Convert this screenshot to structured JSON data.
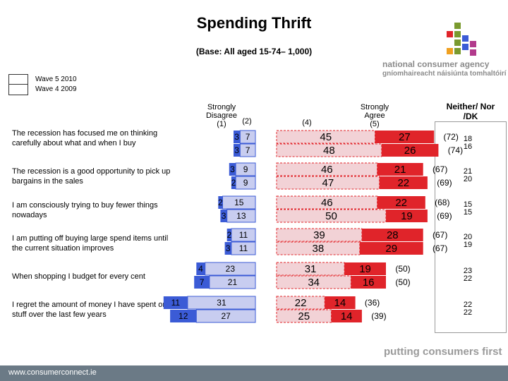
{
  "header": {
    "title": "Spending Thrift",
    "subtitle": "(Base: All aged 15-74– 1,000)"
  },
  "logo": {
    "name": "national consumer agency",
    "irish": "gníomhaireacht náisiúnta tomhaltóirí"
  },
  "legend": {
    "wave5": "Wave 5 2010",
    "wave4": "Wave 4 2009"
  },
  "columns": {
    "strongly_disagree": "Strongly Disagree",
    "sd_code": "(1)",
    "d_code": "(2)",
    "n_code": "(4)",
    "strongly_agree": "Strongly Agree",
    "sa_code": "(5)",
    "neither": "Neither/ Nor /DK"
  },
  "colors": {
    "strongly_disagree": "#3b5bd6",
    "disagree": "#c8cdf0",
    "neutral": "#f2d2d6",
    "agree": "#e0242a",
    "strongly_agree": "#e0242a",
    "footer": "#6b7a86"
  },
  "chart_data": {
    "type": "bar",
    "orientation": "horizontal-stacked-diverging",
    "title": "Spending Thrift",
    "subtitle": "(Base: All aged 15-74– 1,000)",
    "series_labels": [
      "Wave 5 2010",
      "Wave 4 2009"
    ],
    "categories": [
      "The recession has focused me on thinking carefully about what and when I buy",
      "The recession is a good opportunity to pick up bargains in the sales",
      "I am consciously trying to buy fewer things nowadays",
      "I am putting off buying large spend items until the current situation improves",
      "When shopping I budget for every cent",
      "I regret the amount of money I have spent on stuff over the last few years"
    ],
    "rows": [
      {
        "w5": {
          "sd": 3,
          "d": 7,
          "n": 45,
          "sa": 27,
          "total": "(72)",
          "neither": "18"
        },
        "w4": {
          "sd": 3,
          "d": 7,
          "n": 48,
          "sa": 26,
          "total": "(74)",
          "neither": "16"
        }
      },
      {
        "w5": {
          "sd": 3,
          "d": 9,
          "n": 46,
          "sa": 21,
          "total": "(67)",
          "neither": "21"
        },
        "w4": {
          "sd": 2,
          "d": 9,
          "n": 47,
          "sa": 22,
          "total": "(69)",
          "neither": "20"
        }
      },
      {
        "w5": {
          "sd": 2,
          "d": 15,
          "n": 46,
          "sa": 22,
          "total": "(68)",
          "neither": "15"
        },
        "w4": {
          "sd": 3,
          "d": 13,
          "n": 50,
          "sa": 19,
          "total": "(69)",
          "neither": "15"
        }
      },
      {
        "w5": {
          "sd": 2,
          "d": 11,
          "n": 39,
          "sa": 28,
          "total": "(67)",
          "neither": "20"
        },
        "w4": {
          "sd": 3,
          "d": 11,
          "n": 38,
          "sa": 29,
          "total": "(67)",
          "neither": "19"
        }
      },
      {
        "w5": {
          "sd": 4,
          "d": 23,
          "n": 31,
          "sa": 19,
          "total": "(50)",
          "neither": "23"
        },
        "w4": {
          "sd": 7,
          "d": 21,
          "n": 34,
          "sa": 16,
          "total": "(50)",
          "neither": "22"
        }
      },
      {
        "w5": {
          "sd": 11,
          "d": 31,
          "n": 22,
          "sa": 14,
          "total": "(36)",
          "neither": "22"
        },
        "w4": {
          "sd": 12,
          "d": 27,
          "n": 25,
          "sa": 14,
          "total": "(39)",
          "neither": "22"
        }
      }
    ]
  },
  "footer": {
    "url": "www.consumerconnect.ie",
    "tagline": "putting consumers first"
  }
}
